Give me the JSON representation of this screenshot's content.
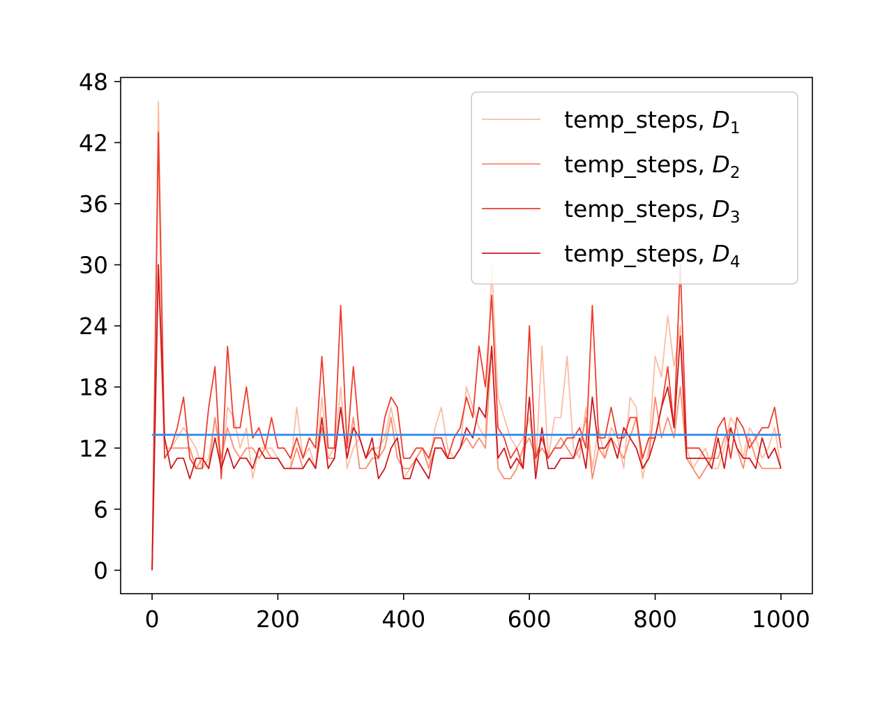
{
  "chart_data": {
    "type": "line",
    "title": "",
    "xlabel": "",
    "ylabel": "",
    "xlim": [
      -50,
      1050
    ],
    "ylim": [
      -2.3,
      48.4
    ],
    "xticks": [
      0,
      200,
      400,
      600,
      800,
      1000
    ],
    "yticks": [
      0,
      6,
      12,
      18,
      24,
      30,
      36,
      42,
      48
    ],
    "grid": false,
    "legend_position": "top-right",
    "x": [
      0,
      10,
      20,
      30,
      40,
      50,
      60,
      70,
      80,
      90,
      100,
      110,
      120,
      130,
      140,
      150,
      160,
      170,
      180,
      190,
      200,
      210,
      220,
      230,
      240,
      250,
      260,
      270,
      280,
      290,
      300,
      310,
      320,
      330,
      340,
      350,
      360,
      370,
      380,
      390,
      400,
      410,
      420,
      430,
      440,
      450,
      460,
      470,
      480,
      490,
      500,
      510,
      520,
      530,
      540,
      550,
      560,
      570,
      580,
      590,
      600,
      610,
      620,
      630,
      640,
      650,
      660,
      670,
      680,
      690,
      700,
      710,
      720,
      730,
      740,
      750,
      760,
      770,
      780,
      790,
      800,
      810,
      820,
      830,
      840,
      850,
      860,
      870,
      880,
      890,
      900,
      910,
      920,
      930,
      940,
      950,
      960,
      970,
      980,
      990,
      1000
    ],
    "series": [
      {
        "name": "temp_steps, ",
        "sub": "1",
        "color": "#fcbba1",
        "values": [
          0,
          46,
          12,
          12,
          13,
          14,
          13,
          12,
          10,
          11,
          15,
          10,
          16,
          15,
          12,
          14,
          9,
          12,
          12,
          12,
          11,
          10,
          10,
          16,
          11,
          12,
          10,
          17,
          11,
          12,
          18,
          10,
          12,
          13,
          11,
          12,
          12,
          13,
          16,
          13,
          9,
          10,
          11,
          12,
          10,
          14,
          16,
          12,
          11,
          12,
          18,
          16,
          14,
          13,
          30,
          17,
          15,
          13,
          12,
          13,
          15,
          10,
          22,
          11,
          15,
          15,
          21,
          12,
          11,
          16,
          10,
          14,
          11,
          14,
          13,
          10,
          17,
          16,
          9,
          12,
          21,
          19,
          25,
          20,
          24,
          12,
          10,
          11,
          12,
          10,
          10,
          12,
          15,
          14,
          11,
          14,
          13,
          11,
          12,
          14,
          10
        ]
      },
      {
        "name": "temp_steps, ",
        "sub": "2",
        "color": "#fb8a6a",
        "values": [
          0,
          30,
          11,
          12,
          12,
          12,
          12,
          10,
          11,
          10,
          15,
          11,
          14,
          12,
          11,
          12,
          12,
          11,
          12,
          11,
          11,
          10,
          10,
          12,
          10,
          11,
          10,
          14,
          11,
          11,
          16,
          11,
          15,
          10,
          10,
          11,
          11,
          12,
          15,
          11,
          10,
          10,
          11,
          12,
          10,
          12,
          12,
          11,
          11,
          12,
          13,
          12,
          13,
          12,
          22,
          10,
          9,
          9,
          10,
          12,
          13,
          11,
          12,
          11,
          12,
          13,
          12,
          11,
          12,
          15,
          9,
          12,
          11,
          13,
          12,
          11,
          13,
          15,
          10,
          11,
          17,
          13,
          15,
          13,
          18,
          11,
          10,
          9,
          10,
          11,
          11,
          13,
          14,
          12,
          10,
          13,
          11,
          10,
          10,
          10,
          10
        ]
      },
      {
        "name": "temp_steps, ",
        "sub": "3",
        "color": "#ef3b2c",
        "values": [
          0,
          43,
          11,
          12,
          14,
          17,
          11,
          10,
          10,
          16,
          20,
          9,
          22,
          14,
          14,
          18,
          13,
          14,
          12,
          15,
          12,
          12,
          11,
          13,
          11,
          13,
          12,
          21,
          12,
          12,
          26,
          12,
          20,
          13,
          11,
          12,
          11,
          15,
          17,
          16,
          11,
          11,
          12,
          12,
          11,
          13,
          13,
          11,
          13,
          14,
          17,
          15,
          22,
          18,
          27,
          14,
          13,
          11,
          12,
          10,
          24,
          11,
          13,
          11,
          12,
          12,
          13,
          13,
          14,
          12,
          26,
          13,
          13,
          16,
          13,
          13,
          15,
          15,
          11,
          13,
          13,
          16,
          20,
          14,
          30,
          12,
          12,
          12,
          11,
          11,
          14,
          15,
          11,
          15,
          14,
          12,
          13,
          14,
          14,
          16,
          12
        ]
      },
      {
        "name": "temp_steps, ",
        "sub": "4",
        "color": "#cb181d",
        "values": [
          0,
          30,
          13,
          10,
          11,
          11,
          9,
          11,
          11,
          10,
          13,
          10,
          12,
          10,
          11,
          11,
          10,
          12,
          11,
          11,
          11,
          10,
          10,
          10,
          10,
          11,
          10,
          15,
          10,
          11,
          16,
          11,
          14,
          13,
          11,
          13,
          9,
          10,
          12,
          13,
          9,
          9,
          11,
          10,
          9,
          12,
          12,
          11,
          11,
          12,
          14,
          13,
          16,
          15,
          22,
          11,
          12,
          10,
          11,
          10,
          17,
          9,
          14,
          10,
          10,
          11,
          11,
          11,
          13,
          10,
          17,
          12,
          12,
          13,
          11,
          14,
          13,
          12,
          10,
          11,
          13,
          16,
          18,
          14,
          23,
          11,
          11,
          11,
          11,
          10,
          13,
          10,
          14,
          12,
          11,
          11,
          10,
          13,
          11,
          12,
          10
        ]
      },
      {
        "name": "",
        "sub": "",
        "color": "#3a8ee6",
        "values_flat": 13.3,
        "x_range": [
          0,
          1000
        ]
      }
    ]
  }
}
